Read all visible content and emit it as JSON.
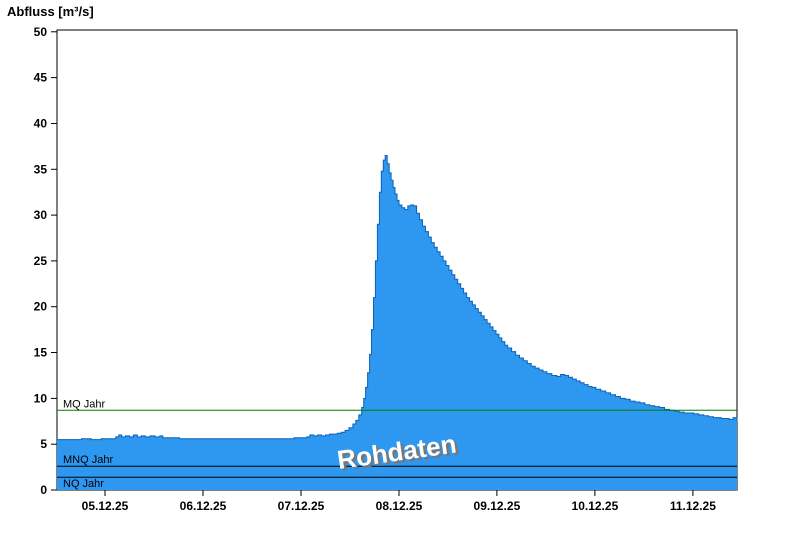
{
  "chart_data": {
    "type": "area",
    "title": "Abfluss [m³/s]",
    "ylabel": "Abfluss [m³/s]",
    "xlabel": "",
    "grid": false,
    "legend_position": "none",
    "x_axis": {
      "span_days": 6.94,
      "ticks": [
        {
          "pos": 0.49,
          "label": "05.12.25"
        },
        {
          "pos": 1.49,
          "label": "06.12.25"
        },
        {
          "pos": 2.49,
          "label": "07.12.25"
        },
        {
          "pos": 3.49,
          "label": "08.12.25"
        },
        {
          "pos": 4.49,
          "label": "09.12.25"
        },
        {
          "pos": 5.49,
          "label": "10.12.25"
        },
        {
          "pos": 6.49,
          "label": "11.12.25"
        }
      ]
    },
    "y_axis": {
      "min": 0,
      "max": 50.2,
      "ticks": [
        0,
        5,
        10,
        15,
        20,
        25,
        30,
        35,
        40,
        45,
        50
      ]
    },
    "reference_lines": [
      {
        "label": "MQ Jahr",
        "value": 8.7,
        "color": "#007F00",
        "label_below": false
      },
      {
        "label": "MNQ Jahr",
        "value": 2.6,
        "color": "#000000",
        "label_below": false
      },
      {
        "label": "NQ Jahr",
        "value": 1.4,
        "color": "#000000",
        "label_below": true
      }
    ],
    "watermark": {
      "text": "Rohdaten",
      "x_day": 3.48,
      "y_value": 3.2,
      "rotate_deg": -8,
      "font_size": 26,
      "color": "#FFFFFF",
      "shadow_color": "#777777"
    },
    "series": [
      {
        "name": "Rohdaten",
        "fill_color": "#2E97F0",
        "line_color": "#0B62B8",
        "points": [
          [
            0.0,
            5.5
          ],
          [
            0.15,
            5.5
          ],
          [
            0.25,
            5.6
          ],
          [
            0.35,
            5.5
          ],
          [
            0.45,
            5.6
          ],
          [
            0.55,
            5.6
          ],
          [
            0.6,
            5.8
          ],
          [
            0.63,
            6.0
          ],
          [
            0.66,
            5.8
          ],
          [
            0.7,
            5.9
          ],
          [
            0.74,
            5.8
          ],
          [
            0.78,
            6.0
          ],
          [
            0.82,
            5.8
          ],
          [
            0.86,
            5.9
          ],
          [
            0.9,
            5.8
          ],
          [
            0.95,
            5.9
          ],
          [
            1.0,
            5.8
          ],
          [
            1.05,
            5.9
          ],
          [
            1.08,
            5.7
          ],
          [
            1.15,
            5.7
          ],
          [
            1.25,
            5.6
          ],
          [
            1.4,
            5.6
          ],
          [
            1.55,
            5.6
          ],
          [
            1.7,
            5.6
          ],
          [
            1.85,
            5.6
          ],
          [
            2.0,
            5.6
          ],
          [
            2.15,
            5.6
          ],
          [
            2.3,
            5.6
          ],
          [
            2.42,
            5.7
          ],
          [
            2.5,
            5.7
          ],
          [
            2.55,
            5.8
          ],
          [
            2.58,
            6.0
          ],
          [
            2.62,
            5.9
          ],
          [
            2.66,
            6.0
          ],
          [
            2.7,
            5.9
          ],
          [
            2.74,
            6.0
          ],
          [
            2.78,
            6.1
          ],
          [
            2.82,
            6.1
          ],
          [
            2.86,
            6.2
          ],
          [
            2.9,
            6.3
          ],
          [
            2.94,
            6.5
          ],
          [
            2.98,
            6.8
          ],
          [
            3.02,
            7.2
          ],
          [
            3.05,
            7.6
          ],
          [
            3.08,
            8.2
          ],
          [
            3.11,
            9.0
          ],
          [
            3.13,
            10.0
          ],
          [
            3.15,
            11.2
          ],
          [
            3.17,
            12.8
          ],
          [
            3.19,
            14.8
          ],
          [
            3.21,
            17.5
          ],
          [
            3.23,
            21.0
          ],
          [
            3.25,
            25.0
          ],
          [
            3.27,
            29.0
          ],
          [
            3.29,
            32.5
          ],
          [
            3.31,
            34.8
          ],
          [
            3.33,
            36.0
          ],
          [
            3.35,
            36.5
          ],
          [
            3.37,
            35.6
          ],
          [
            3.39,
            34.6
          ],
          [
            3.41,
            33.8
          ],
          [
            3.43,
            33.0
          ],
          [
            3.45,
            32.3
          ],
          [
            3.47,
            31.6
          ],
          [
            3.49,
            31.1
          ],
          [
            3.52,
            30.8
          ],
          [
            3.55,
            30.6
          ],
          [
            3.58,
            31.0
          ],
          [
            3.61,
            31.1
          ],
          [
            3.64,
            31.0
          ],
          [
            3.67,
            30.2
          ],
          [
            3.7,
            29.5
          ],
          [
            3.73,
            28.8
          ],
          [
            3.76,
            28.2
          ],
          [
            3.79,
            27.6
          ],
          [
            3.82,
            27.0
          ],
          [
            3.85,
            26.5
          ],
          [
            3.88,
            26.0
          ],
          [
            3.91,
            25.5
          ],
          [
            3.94,
            25.0
          ],
          [
            3.97,
            24.5
          ],
          [
            4.0,
            24.0
          ],
          [
            4.03,
            23.5
          ],
          [
            4.06,
            23.0
          ],
          [
            4.09,
            22.5
          ],
          [
            4.12,
            22.0
          ],
          [
            4.15,
            21.5
          ],
          [
            4.18,
            21.0
          ],
          [
            4.21,
            20.6
          ],
          [
            4.24,
            20.2
          ],
          [
            4.27,
            19.8
          ],
          [
            4.3,
            19.4
          ],
          [
            4.33,
            19.0
          ],
          [
            4.36,
            18.6
          ],
          [
            4.39,
            18.2
          ],
          [
            4.42,
            17.8
          ],
          [
            4.45,
            17.4
          ],
          [
            4.48,
            17.0
          ],
          [
            4.51,
            16.6
          ],
          [
            4.54,
            16.2
          ],
          [
            4.57,
            15.8
          ],
          [
            4.6,
            15.5
          ],
          [
            4.64,
            15.1
          ],
          [
            4.68,
            14.7
          ],
          [
            4.72,
            14.4
          ],
          [
            4.76,
            14.1
          ],
          [
            4.8,
            13.8
          ],
          [
            4.84,
            13.5
          ],
          [
            4.88,
            13.3
          ],
          [
            4.92,
            13.1
          ],
          [
            4.96,
            12.9
          ],
          [
            5.0,
            12.7
          ],
          [
            5.05,
            12.5
          ],
          [
            5.1,
            12.4
          ],
          [
            5.14,
            12.6
          ],
          [
            5.18,
            12.5
          ],
          [
            5.22,
            12.3
          ],
          [
            5.26,
            12.1
          ],
          [
            5.3,
            11.9
          ],
          [
            5.34,
            11.7
          ],
          [
            5.38,
            11.5
          ],
          [
            5.42,
            11.3
          ],
          [
            5.46,
            11.2
          ],
          [
            5.5,
            11.0
          ],
          [
            5.55,
            10.8
          ],
          [
            5.6,
            10.6
          ],
          [
            5.65,
            10.4
          ],
          [
            5.7,
            10.2
          ],
          [
            5.75,
            10.0
          ],
          [
            5.8,
            9.9
          ],
          [
            5.85,
            9.7
          ],
          [
            5.9,
            9.6
          ],
          [
            5.95,
            9.5
          ],
          [
            6.0,
            9.3
          ],
          [
            6.05,
            9.2
          ],
          [
            6.1,
            9.1
          ],
          [
            6.15,
            9.0
          ],
          [
            6.2,
            8.8
          ],
          [
            6.25,
            8.7
          ],
          [
            6.3,
            8.6
          ],
          [
            6.35,
            8.5
          ],
          [
            6.4,
            8.4
          ],
          [
            6.45,
            8.4
          ],
          [
            6.5,
            8.3
          ],
          [
            6.55,
            8.2
          ],
          [
            6.6,
            8.1
          ],
          [
            6.65,
            8.0
          ],
          [
            6.7,
            7.9
          ],
          [
            6.74,
            7.9
          ],
          [
            6.78,
            7.8
          ],
          [
            6.82,
            7.8
          ],
          [
            6.86,
            7.7
          ],
          [
            6.9,
            7.9
          ],
          [
            6.94,
            7.5
          ]
        ]
      }
    ]
  }
}
